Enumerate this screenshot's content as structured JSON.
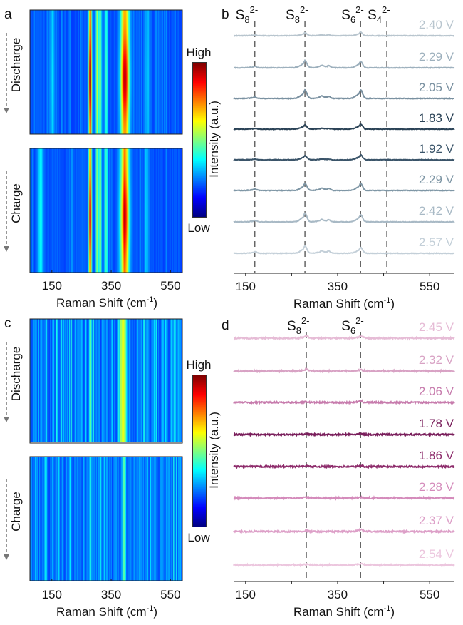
{
  "chart_data": [
    {
      "panel": "a",
      "type": "heatmap",
      "xlabel": "Raman Shift (cm",
      "xlabel_sup": "-1",
      "xlabel_end": ")",
      "xlim": [
        76,
        590
      ],
      "xticks": [
        "150",
        "350",
        "550"
      ],
      "xtick_values": [
        150,
        350,
        550
      ],
      "maps": [
        {
          "label": "Discharge",
          "peaks": [
            [
              278,
              0.55,
              5
            ],
            [
              302,
              0.3,
              5
            ],
            [
              312,
              0.3,
              4
            ],
            [
              332,
              0.22,
              5
            ],
            [
              395,
              0.5,
              14
            ],
            [
              150,
              0.1,
              8
            ],
            [
              470,
              0.08,
              10
            ]
          ],
          "mid_boost": 0.25,
          "noise": 0.05
        },
        {
          "label": "Charge",
          "peaks": [
            [
              278,
              0.55,
              5
            ],
            [
              302,
              0.3,
              5
            ],
            [
              312,
              0.3,
              4
            ],
            [
              332,
              0.22,
              5
            ],
            [
              395,
              0.5,
              14
            ],
            [
              110,
              0.15,
              8
            ],
            [
              470,
              0.08,
              10
            ]
          ],
          "mid_boost": 0.2,
          "noise": 0.05
        }
      ],
      "colorbar": {
        "label": "Intensity  (a.u.)",
        "high": "High",
        "low": "Low"
      }
    },
    {
      "panel": "b",
      "type": "line",
      "xlabel": "Raman Shift (cm",
      "xlabel_sup": "-1",
      "xlabel_end": ")",
      "xlim": [
        124,
        604
      ],
      "xticks": [
        "150",
        "350",
        "550"
      ],
      "xtick_values": [
        150,
        350,
        550
      ],
      "markers": [
        {
          "x": 170,
          "base": "S",
          "sub": "8",
          "sup": "2-"
        },
        {
          "x": 279,
          "base": "S",
          "sub": "8",
          "sup": "2-"
        },
        {
          "x": 400,
          "base": "S",
          "sub": "6",
          "sup": "2-"
        },
        {
          "x": 457,
          "base": "S",
          "sub": "4",
          "sup": "2-"
        }
      ],
      "peak_positions": [
        170,
        279,
        315,
        330,
        400
      ],
      "series": [
        {
          "name": "2.40 V",
          "color": "#b8c5ce",
          "amps": [
            1,
            4,
            1,
            1,
            5
          ]
        },
        {
          "name": "2.29 V",
          "color": "#9db0bd",
          "amps": [
            2,
            10,
            3,
            3,
            9
          ]
        },
        {
          "name": "2.05 V",
          "color": "#7990a0",
          "amps": [
            2,
            12,
            3,
            3,
            12
          ]
        },
        {
          "name": "1.83 V",
          "color": "#2a4256",
          "amps": [
            1,
            6,
            1,
            1,
            7
          ]
        },
        {
          "name": "1.92 V",
          "color": "#3a5469",
          "amps": [
            1,
            6,
            1,
            1,
            7
          ]
        },
        {
          "name": "2.29 V",
          "color": "#7e96a5",
          "amps": [
            2,
            10,
            3,
            3,
            10
          ]
        },
        {
          "name": "2.42 V",
          "color": "#a8b9c5",
          "amps": [
            2,
            12,
            3,
            3,
            10
          ]
        },
        {
          "name": "2.57 V",
          "color": "#c3cfd8",
          "amps": [
            2,
            10,
            3,
            3,
            8
          ]
        }
      ]
    },
    {
      "panel": "c",
      "type": "heatmap",
      "xlabel": "Raman Shift (cm",
      "xlabel_sup": "-1",
      "xlabel_end": ")",
      "xlim": [
        76,
        590
      ],
      "xticks": [
        "150",
        "350",
        "550"
      ],
      "xtick_values": [
        150,
        350,
        550
      ],
      "maps": [
        {
          "label": "Discharge",
          "peaks": [
            [
              279,
              0.3,
              4
            ],
            [
              390,
              0.35,
              10
            ]
          ],
          "mid_boost": 0.1,
          "noise": 0.12
        },
        {
          "label": "Charge",
          "peaks": [
            [
              279,
              0.15,
              4
            ],
            [
              392,
              0.2,
              6
            ]
          ],
          "mid_boost": 0.05,
          "noise": 0.12
        }
      ],
      "colorbar": {
        "label": "Intensity  (a.u.)",
        "high": "High",
        "low": "Low"
      }
    },
    {
      "panel": "d",
      "type": "line",
      "xlabel": "Raman Shift (cm",
      "xlabel_sup": "-1",
      "xlabel_end": ")",
      "xlim": [
        124,
        604
      ],
      "xticks": [
        "150",
        "350",
        "550"
      ],
      "xtick_values": [
        150,
        350,
        550
      ],
      "markers": [
        {
          "x": 282,
          "base": "S",
          "sub": "8",
          "sup": "2-"
        },
        {
          "x": 400,
          "base": "S",
          "sub": "6",
          "sup": "2-"
        }
      ],
      "peak_positions": [
        282,
        400
      ],
      "series": [
        {
          "name": "2.45 V",
          "color": "#e6bcd6",
          "amps": [
            3,
            3
          ]
        },
        {
          "name": "2.32 V",
          "color": "#d8a2c4",
          "amps": [
            3,
            2
          ]
        },
        {
          "name": "2.06 V",
          "color": "#c77cad",
          "amps": [
            1,
            2
          ]
        },
        {
          "name": "1.78 V",
          "color": "#7a1f5c",
          "amps": [
            1,
            1
          ]
        },
        {
          "name": "1.86 V",
          "color": "#8e2d6c",
          "amps": [
            1,
            1
          ]
        },
        {
          "name": "2.28 V",
          "color": "#d48bbb",
          "amps": [
            1,
            1
          ]
        },
        {
          "name": "2.37 V",
          "color": "#dda0c8",
          "amps": [
            1,
            3
          ]
        },
        {
          "name": "2.54 V",
          "color": "#ecc6de",
          "amps": [
            1,
            2
          ]
        }
      ]
    }
  ]
}
